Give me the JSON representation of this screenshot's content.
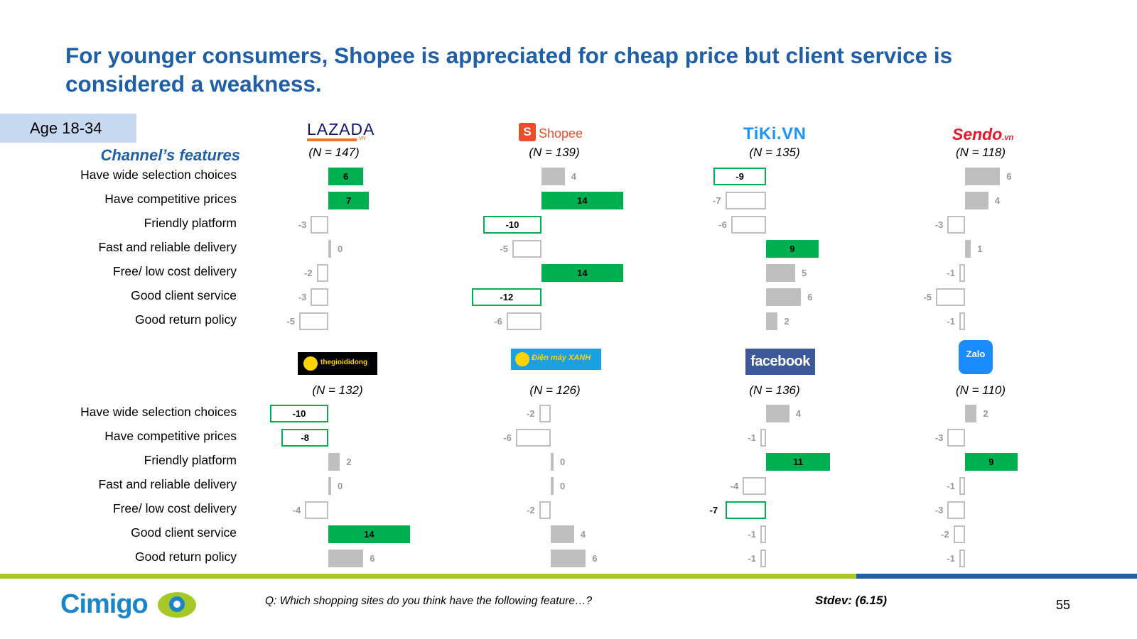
{
  "title": "For younger consumers, Shopee is appreciated for cheap price but client service is considered a weakness.",
  "age_tag": "Age 18-34",
  "features_heading": "Channel’s features",
  "features": [
    "Have wide selection choices",
    "Have competitive prices",
    "Friendly platform",
    "Fast and reliable delivery",
    "Free/ low cost delivery",
    "Good client service",
    "Good return policy"
  ],
  "logos": {
    "lazada": "LAZADA",
    "lazada_vn": ".VN",
    "shopee_bag": "S",
    "shopee": "Shopee",
    "tiki": "TiKi.VN",
    "sendo": "Sendo",
    "sendo_vn": ".vn",
    "tgdd": "thegioididong",
    "dmx": "Điện máy XANH",
    "facebook": "facebook",
    "zalo": "Zalo"
  },
  "legend_colors": {
    "strength": "#00b050",
    "weakness_outline": "#00b050",
    "neutral": "#bfbfbf"
  },
  "chart_data": [
    {
      "type": "bar",
      "channel": "Lazada",
      "n_label": "(N = 147)",
      "categories": [
        "Have wide selection choices",
        "Have competitive prices",
        "Friendly platform",
        "Fast and reliable delivery",
        "Free/ low cost delivery",
        "Good client service",
        "Good return policy"
      ],
      "values": [
        6,
        7,
        -3,
        0,
        -2,
        -3,
        -5
      ],
      "styles": [
        "green",
        "green",
        "neutral",
        "neutral",
        "neutral",
        "neutral",
        "neutral"
      ]
    },
    {
      "type": "bar",
      "channel": "Shopee",
      "n_label": "(N = 139)",
      "categories": [
        "Have wide selection choices",
        "Have competitive prices",
        "Friendly platform",
        "Fast and reliable delivery",
        "Free/ low cost delivery",
        "Good client service",
        "Good return policy"
      ],
      "values": [
        4,
        14,
        -10,
        -5,
        14,
        -12,
        -6
      ],
      "styles": [
        "neutral",
        "green",
        "outline",
        "neutral",
        "green",
        "outline",
        "neutral"
      ]
    },
    {
      "type": "bar",
      "channel": "Tiki",
      "n_label": "(N = 135)",
      "categories": [
        "Have wide selection choices",
        "Have competitive prices",
        "Friendly platform",
        "Fast and reliable delivery",
        "Free/ low cost delivery",
        "Good client service",
        "Good return policy"
      ],
      "values": [
        -9,
        -7,
        -6,
        9,
        5,
        6,
        2
      ],
      "styles": [
        "outline",
        "neutral",
        "neutral",
        "green",
        "neutral",
        "neutral",
        "neutral"
      ]
    },
    {
      "type": "bar",
      "channel": "Sendo",
      "n_label": "(N = 118)",
      "categories": [
        "Have wide selection choices",
        "Have competitive prices",
        "Friendly platform",
        "Fast and reliable delivery",
        "Free/ low cost delivery",
        "Good client service",
        "Good return policy"
      ],
      "values": [
        6,
        4,
        -3,
        1,
        -1,
        -5,
        -1
      ],
      "styles": [
        "neutral",
        "neutral",
        "neutral",
        "neutral",
        "neutral",
        "neutral",
        "neutral"
      ]
    },
    {
      "type": "bar",
      "channel": "Thegioididong",
      "n_label": "(N = 132)",
      "categories": [
        "Have wide selection choices",
        "Have competitive prices",
        "Friendly platform",
        "Fast and reliable delivery",
        "Free/ low cost delivery",
        "Good client service",
        "Good return policy"
      ],
      "values": [
        -10,
        -8,
        2,
        0,
        -4,
        14,
        6
      ],
      "styles": [
        "outline",
        "outline",
        "neutral",
        "neutral",
        "neutral",
        "green",
        "neutral"
      ]
    },
    {
      "type": "bar",
      "channel": "Dien may Xanh",
      "n_label": "(N = 126)",
      "categories": [
        "Have wide selection choices",
        "Have competitive prices",
        "Friendly platform",
        "Fast and reliable delivery",
        "Free/ low cost delivery",
        "Good client service",
        "Good return policy"
      ],
      "values": [
        -2,
        -6,
        0,
        0,
        -2,
        4,
        6
      ],
      "styles": [
        "neutral",
        "neutral",
        "neutral",
        "neutral",
        "neutral",
        "neutral",
        "neutral"
      ]
    },
    {
      "type": "bar",
      "channel": "Facebook",
      "n_label": "(N = 136)",
      "categories": [
        "Have wide selection choices",
        "Have competitive prices",
        "Friendly platform",
        "Fast and reliable delivery",
        "Free/ low cost delivery",
        "Good client service",
        "Good return policy"
      ],
      "values": [
        4,
        -1,
        11,
        -4,
        -7,
        -1,
        -1
      ],
      "styles": [
        "neutral",
        "neutral",
        "green",
        "neutral",
        "outline",
        "neutral",
        "neutral"
      ]
    },
    {
      "type": "bar",
      "channel": "Zalo",
      "n_label": "(N = 110)",
      "categories": [
        "Have wide selection choices",
        "Have competitive prices",
        "Friendly platform",
        "Fast and reliable delivery",
        "Free/ low cost delivery",
        "Good client service",
        "Good return policy"
      ],
      "values": [
        2,
        -3,
        9,
        -1,
        -3,
        -2,
        -1
      ],
      "styles": [
        "neutral",
        "neutral",
        "green",
        "neutral",
        "neutral",
        "neutral",
        "neutral"
      ]
    }
  ],
  "footer": {
    "brand": "Cimigo",
    "question": "Q: Which shopping sites do you think have the following feature…?",
    "stdev": "Stdev: (6.15)",
    "page_number": "55"
  }
}
